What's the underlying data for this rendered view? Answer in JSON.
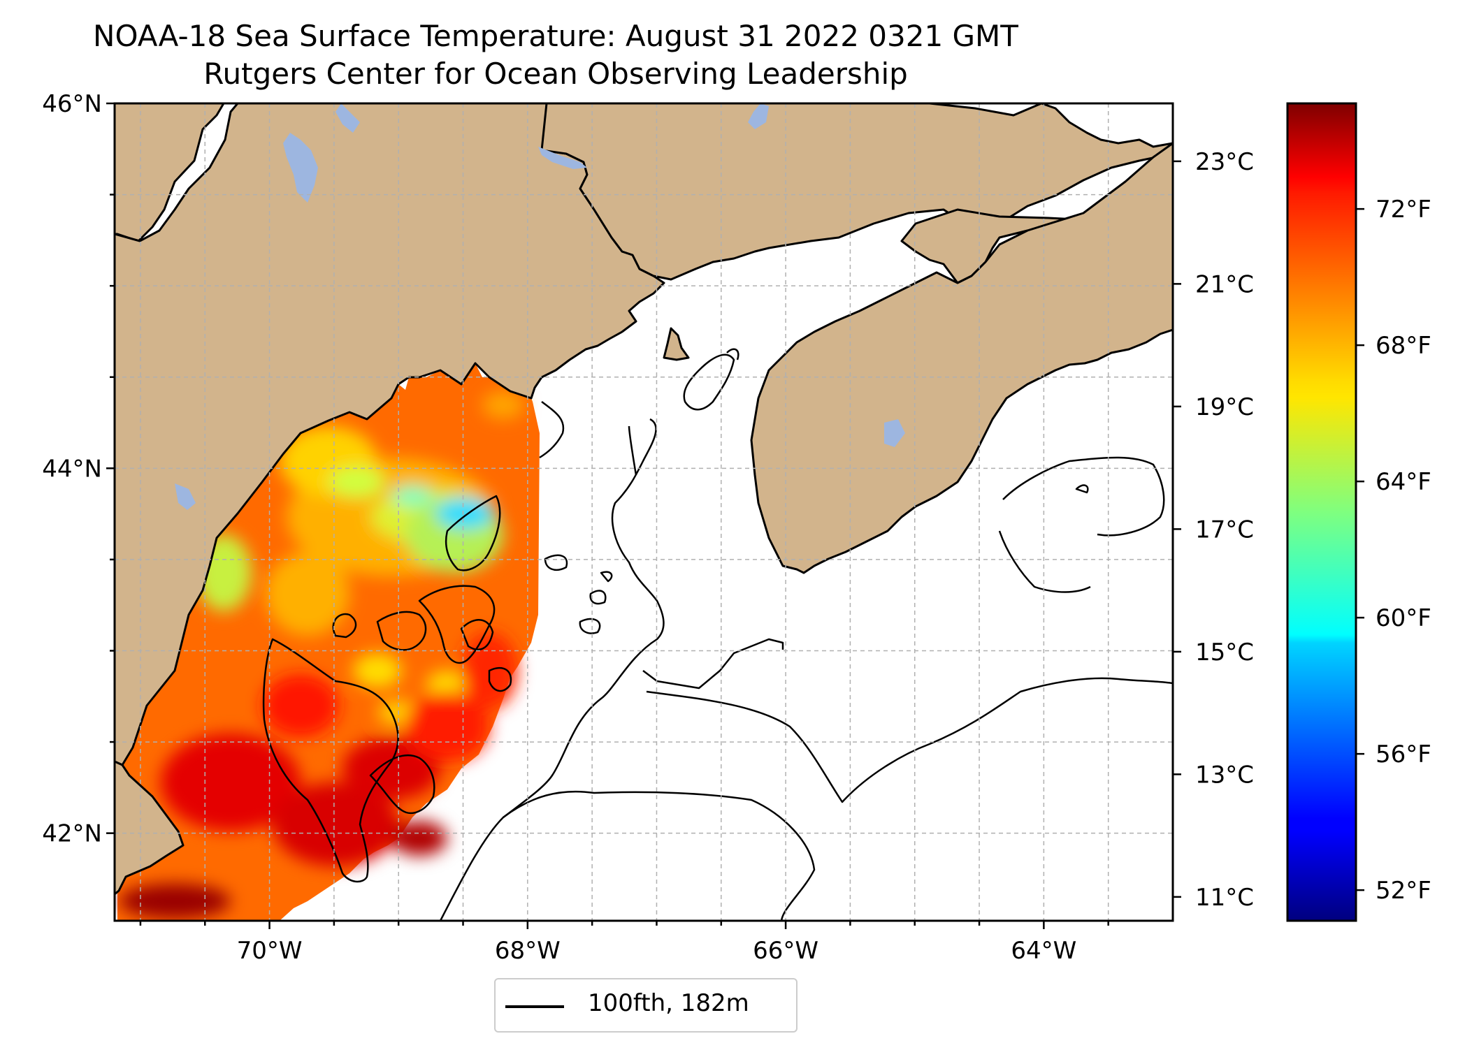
{
  "title_line1": "NOAA-18 Sea Surface Temperature: August 31 2022 0321 GMT",
  "title_line2": "Rutgers Center for Ocean Observing Leadership",
  "map": {
    "lon_range": [
      -71.2,
      -63.0
    ],
    "lat_range": [
      41.52,
      46.0
    ],
    "lat_ticks": [
      {
        "value": 46,
        "label": "46°N"
      },
      {
        "value": 44,
        "label": "44°N"
      },
      {
        "value": 42,
        "label": "42°N"
      }
    ],
    "lon_ticks": [
      {
        "value": -70,
        "label": "70°W"
      },
      {
        "value": -68,
        "label": "68°W"
      },
      {
        "value": -66,
        "label": "66°W"
      },
      {
        "value": -64,
        "label": "64°W"
      }
    ],
    "grid": true,
    "land_color": "#d2b48c",
    "lake_color": "#9db6e0",
    "ocean_color": "#ffffff"
  },
  "legend": {
    "label": "100fth, 182m",
    "line_color": "#000000",
    "placement": "bottom-center"
  },
  "colorbar": {
    "colormap": "jet",
    "range_f": [
      51.1,
      75.1
    ],
    "celsius_ticks": [
      {
        "value": 23,
        "label": "23°C"
      },
      {
        "value": 21,
        "label": "21°C"
      },
      {
        "value": 19,
        "label": "19°C"
      },
      {
        "value": 17,
        "label": "17°C"
      },
      {
        "value": 15,
        "label": "15°C"
      },
      {
        "value": 13,
        "label": "13°C"
      },
      {
        "value": 11,
        "label": "11°C"
      }
    ],
    "fahrenheit_ticks": [
      {
        "value": 72,
        "label": "72°F"
      },
      {
        "value": 68,
        "label": "68°F"
      },
      {
        "value": 64,
        "label": "64°F"
      },
      {
        "value": 60,
        "label": "60°F"
      },
      {
        "value": 56,
        "label": "56°F"
      },
      {
        "value": 52,
        "label": "52°F"
      }
    ]
  }
}
